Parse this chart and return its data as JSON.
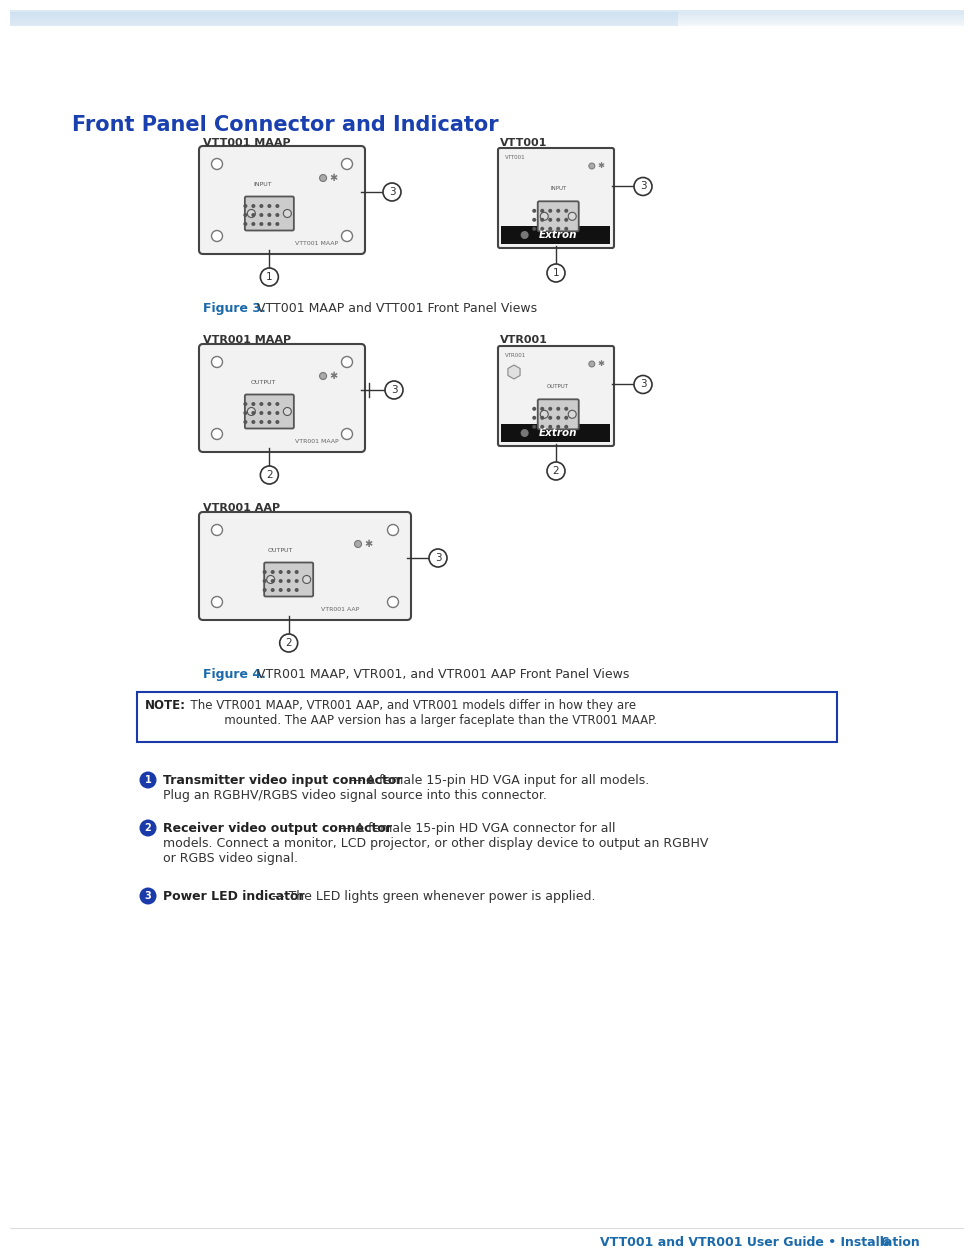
{
  "title": "Front Panel Connector and Indicator",
  "title_color": "#1a40b0",
  "title_fontsize": 15,
  "bg_color": "#ffffff",
  "page_width": 9.54,
  "page_height": 12.35,
  "fig3_label": "Figure 3.",
  "fig3_text": "VTT001 MAAP and VTT001 Front Panel Views",
  "fig4_label": "Figure 4.",
  "fig4_text": "VTR001 MAAP, VTR001, and VTR001 AAP Front Panel Views",
  "caption_color": "#1a6aaa",
  "note_bold": "NOTE:",
  "note_text": "  The VTR001 MAAP, VTR001 AAP, and VTR001 models differ in how they are\n           mounted. The AAP version has a larger faceplate than the VTR001 MAAP.",
  "note_border_color": "#1a3aaa",
  "b1_label": "Transmitter video input connector",
  "b1_text": " — A female 15-pin HD VGA input for all models.\nPlug an RGBHV/RGBS video signal source into this connector.",
  "b2_label": "Receiver video output connector",
  "b2_text": " — A female 15-pin HD VGA connector for all\nmodels. Connect a monitor, LCD projector, or other display device to output an RGBHV\nor RGBS video signal.",
  "b3_label": "Power LED indicator",
  "b3_text": " — The LED lights green whenever power is applied.",
  "footer_text": "VTT001 and VTR001 User Guide • Installation",
  "footer_page": "6",
  "footer_color": "#1a6aaa",
  "panel_face": "#f2f2f2",
  "panel_edge": "#444444",
  "vga_face": "#c8c8c8",
  "vga_edge": "#555555",
  "callout_color": "#333333",
  "bullet_circle_color": "#1a3aaa"
}
